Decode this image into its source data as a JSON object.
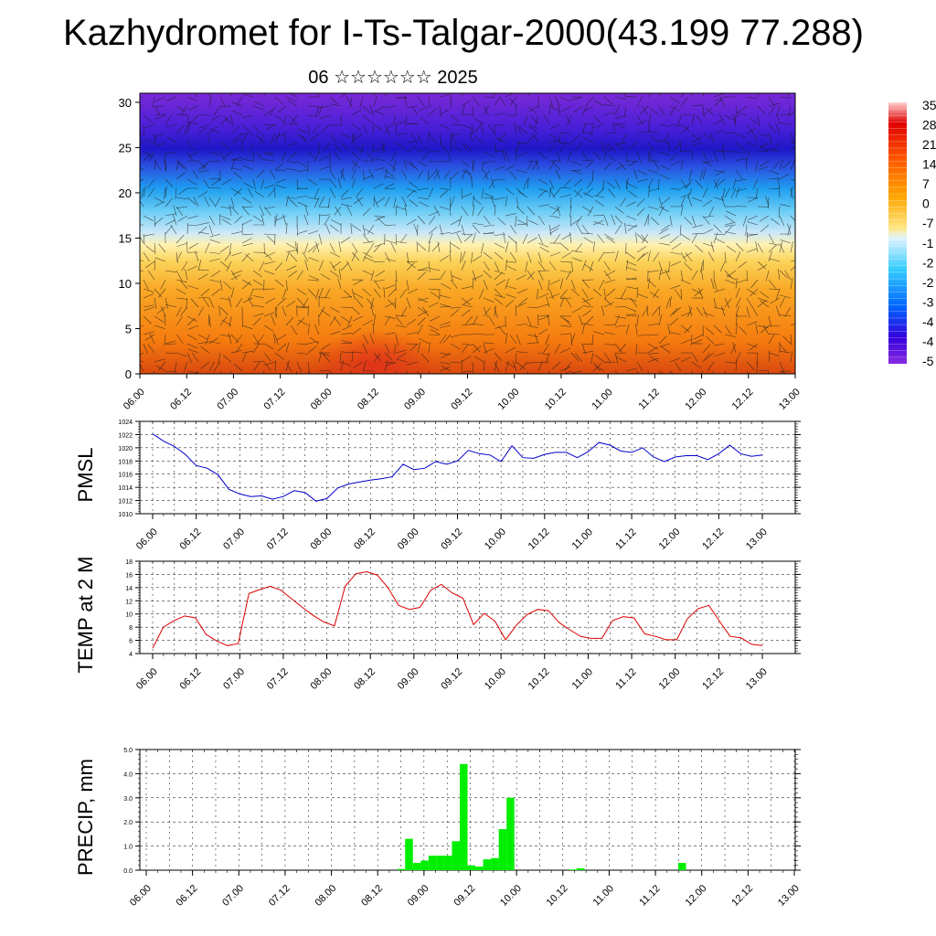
{
  "title": "Kazhydromet for I-Ts-Talgar-2000(43.199 77.288)",
  "subtitle": "06 ☆☆☆☆☆☆ 2025",
  "chart_data": [
    {
      "type": "heatmap",
      "name": "vertical-cross-section",
      "y_ticks": [
        "0",
        "5",
        "10",
        "15",
        "20",
        "25",
        "30"
      ],
      "ylim": [
        0,
        31
      ],
      "x_ticks": [
        "06.00",
        "06.12",
        "07.00",
        "07.12",
        "08.00",
        "08.12",
        "09.00",
        "09.12",
        "10.00",
        "10.12",
        "11.00",
        "11.12",
        "12.00",
        "12.12",
        "13.00"
      ],
      "colorbar_labels": [
        "35",
        "28",
        "21",
        "14",
        "7",
        "0",
        "-7",
        "-1",
        "-2",
        "-2",
        "-3",
        "-4",
        "-4",
        "-5"
      ],
      "colors": [
        "#ffcccc",
        "#e60000",
        "#ff6600",
        "#ffa500",
        "#ffe680",
        "#b3e0ff",
        "#33ccff",
        "#0066ff",
        "#3300cc",
        "#7a1fd6"
      ]
    },
    {
      "type": "line",
      "ylabel": "PMSL",
      "y_ticks": [
        "1010",
        "1012",
        "1014",
        "1016",
        "1018",
        "1020",
        "1022",
        "1024"
      ],
      "ylim": [
        1010,
        1024
      ],
      "x_ticks": [
        "06.00",
        "06.12",
        "07.00",
        "07.12",
        "08.00",
        "08.12",
        "09.00",
        "09.12",
        "10.00",
        "10.12",
        "11.00",
        "11.12",
        "12.00",
        "12.12",
        "13.00"
      ],
      "color": "#0000cc",
      "values": [
        1022.1,
        1021.0,
        1020.2,
        1019.0,
        1017.3,
        1016.9,
        1015.9,
        1013.7,
        1013.0,
        1012.6,
        1012.7,
        1012.2,
        1012.6,
        1013.5,
        1013.2,
        1011.9,
        1012.3,
        1013.9,
        1014.5,
        1014.8,
        1015.1,
        1015.3,
        1015.6,
        1017.5,
        1016.7,
        1016.9,
        1017.9,
        1017.5,
        1018.0,
        1019.6,
        1019.1,
        1018.9,
        1017.9,
        1020.3,
        1018.5,
        1018.4,
        1019.0,
        1019.3,
        1019.3,
        1018.5,
        1019.4,
        1020.8,
        1020.4,
        1019.5,
        1019.3,
        1020.0,
        1018.6,
        1017.9,
        1018.6,
        1018.8,
        1018.8,
        1018.2,
        1019.1,
        1020.4,
        1019.1,
        1018.7,
        1018.9
      ]
    },
    {
      "type": "line",
      "ylabel": "TEMP at 2 M",
      "y_ticks": [
        "4",
        "6",
        "8",
        "10",
        "12",
        "14",
        "16",
        "18"
      ],
      "ylim": [
        4,
        18
      ],
      "x_ticks": [
        "06.00",
        "06.12",
        "07.00",
        "07.12",
        "08.00",
        "08.12",
        "09.00",
        "09.12",
        "10.00",
        "10.12",
        "11.00",
        "11.12",
        "12.00",
        "12.12",
        "13.00"
      ],
      "color": "#dd0000",
      "values": [
        4.8,
        8.0,
        9.0,
        9.7,
        9.4,
        6.9,
        5.9,
        5.2,
        5.5,
        13.1,
        13.7,
        14.2,
        13.6,
        12.3,
        11.0,
        9.8,
        8.8,
        8.2,
        14.2,
        16.1,
        16.4,
        15.9,
        14.0,
        11.3,
        10.7,
        11.0,
        13.6,
        14.5,
        13.2,
        12.4,
        8.4,
        10.1,
        8.9,
        6.1,
        8.3,
        9.9,
        10.7,
        10.5,
        8.7,
        7.6,
        6.6,
        6.3,
        6.3,
        9.0,
        9.6,
        9.4,
        7.0,
        6.6,
        6.1,
        6.1,
        9.3,
        10.8,
        11.3,
        8.9,
        6.6,
        6.4,
        5.4,
        5.2
      ]
    },
    {
      "type": "bar",
      "ylabel": "PRECIP, mm",
      "y_ticks": [
        "0.0",
        "1.0",
        "2.0",
        "3.0",
        "4.0",
        "5.0"
      ],
      "ylim": [
        0,
        5
      ],
      "x_ticks": [
        "06.00",
        "06.12",
        "07.00",
        "07.12",
        "08.00",
        "08.12",
        "09.00",
        "09.12",
        "10.00",
        "10.12",
        "11.00",
        "11.12",
        "12.00",
        "12.12",
        "13.00"
      ],
      "color": "#00ee00",
      "values": [
        0,
        0,
        0,
        0,
        0,
        0,
        0,
        0,
        0,
        0,
        0,
        0,
        0,
        0,
        0,
        0,
        0,
        0,
        0,
        0,
        0,
        0,
        0,
        0,
        0,
        0,
        0,
        0,
        0,
        0,
        0,
        0,
        0,
        0.05,
        1.3,
        0.3,
        0.4,
        0.6,
        0.6,
        0.6,
        1.2,
        4.4,
        0.2,
        0.15,
        0.45,
        0.5,
        1.7,
        3.0,
        0,
        0,
        0,
        0,
        0,
        0,
        0,
        0.03,
        0.08,
        0,
        0,
        0,
        0,
        0,
        0,
        0,
        0,
        0,
        0,
        0,
        0,
        0.3,
        0,
        0,
        0,
        0,
        0,
        0,
        0,
        0,
        0,
        0,
        0,
        0,
        0,
        0
      ]
    }
  ]
}
